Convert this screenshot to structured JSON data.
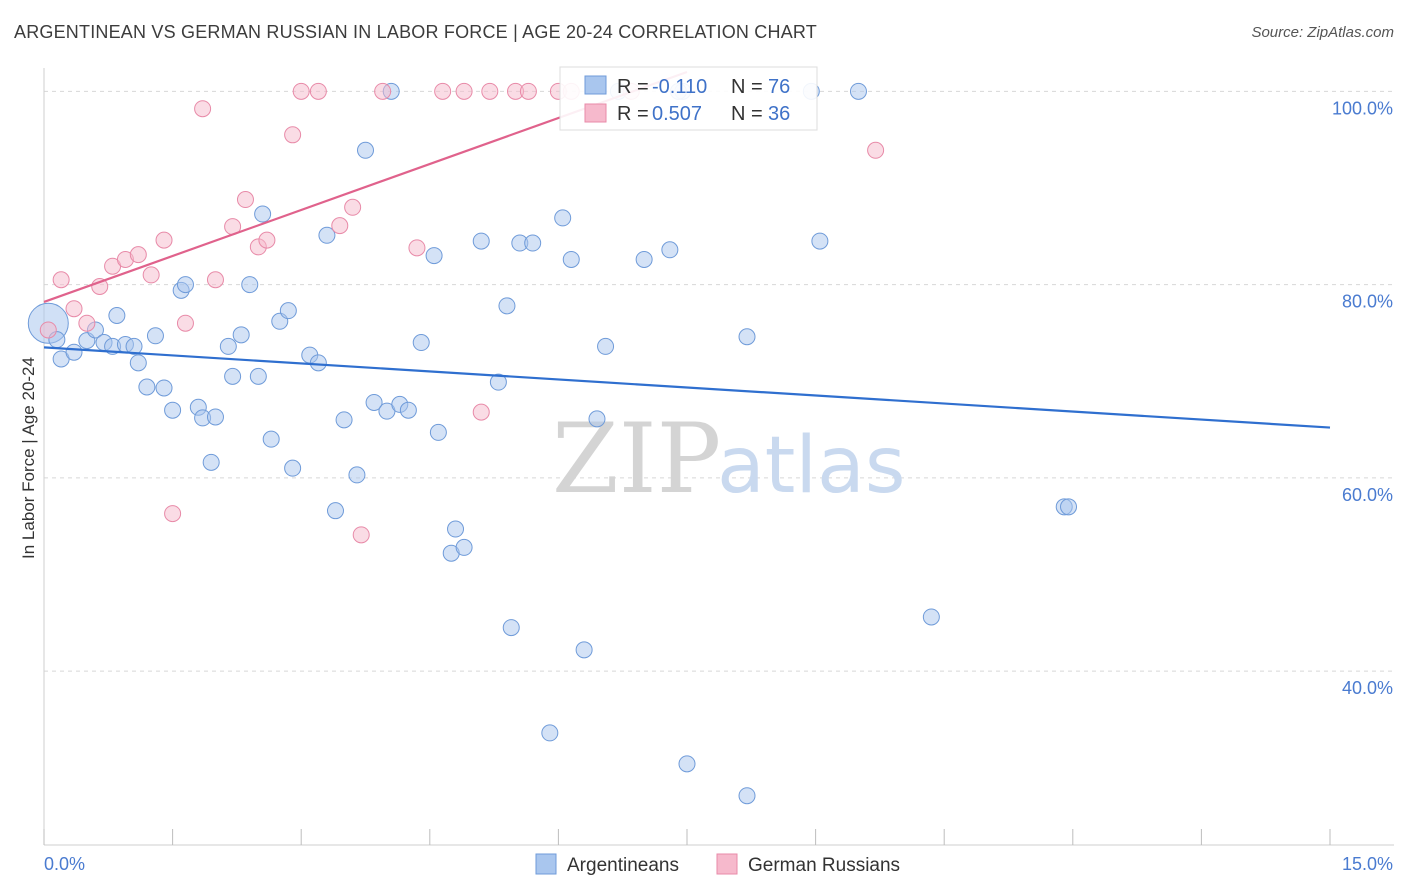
{
  "title": "ARGENTINEAN VS GERMAN RUSSIAN IN LABOR FORCE | AGE 20-24 CORRELATION CHART",
  "source": "Source: ZipAtlas.com",
  "watermark": {
    "zip": "ZIP",
    "atlas": "atlas"
  },
  "colors": {
    "argentineans_fill": "#a9c6ee",
    "argentineans_stroke": "#6f9bd9",
    "argentineans_line": "#2f6fcf",
    "german_russians_fill": "#f6b9cc",
    "german_russians_stroke": "#e88aa8",
    "german_russians_line": "#e0628c",
    "tick_label": "#4a7bd0",
    "grid": "#d8d8d8"
  },
  "legend": {
    "r_label": "R =",
    "n_label": "N =",
    "rows": [
      {
        "r": "-0.110",
        "n": "76"
      },
      {
        "r": "0.507",
        "n": "36"
      }
    ]
  },
  "bottom_legend": [
    "Argentineans",
    "German Russians"
  ],
  "chart_data": {
    "type": "scatter",
    "title": "ARGENTINEAN VS GERMAN RUSSIAN IN LABOR FORCE | AGE 20-24 CORRELATION CHART",
    "xlabel": "",
    "ylabel": "In Labor Force | Age 20-24",
    "xlim": [
      0,
      15
    ],
    "ylim": [
      22,
      102
    ],
    "x_tick_labels": [
      "0.0%",
      "15.0%"
    ],
    "y_ticks": [
      40,
      60,
      80,
      100
    ],
    "y_tick_labels": [
      "40.0%",
      "60.0%",
      "80.0%",
      "100.0%"
    ],
    "grid": true,
    "legend_position": "top-center",
    "series": [
      {
        "name": "Argentineans",
        "r": -0.11,
        "n": 76,
        "trend": {
          "x": [
            0,
            15
          ],
          "y": [
            73.5,
            65.2
          ]
        },
        "points": [
          {
            "x": 0.05,
            "y": 76.0,
            "big": true
          },
          {
            "x": 0.2,
            "y": 72.3
          },
          {
            "x": 0.15,
            "y": 74.3
          },
          {
            "x": 0.35,
            "y": 73.0
          },
          {
            "x": 0.5,
            "y": 74.2
          },
          {
            "x": 0.6,
            "y": 75.3
          },
          {
            "x": 0.7,
            "y": 74.0
          },
          {
            "x": 0.8,
            "y": 73.6
          },
          {
            "x": 0.95,
            "y": 73.8
          },
          {
            "x": 0.85,
            "y": 76.8
          },
          {
            "x": 1.05,
            "y": 73.6
          },
          {
            "x": 1.1,
            "y": 71.9
          },
          {
            "x": 1.2,
            "y": 69.4
          },
          {
            "x": 1.3,
            "y": 74.7
          },
          {
            "x": 1.4,
            "y": 69.3
          },
          {
            "x": 1.5,
            "y": 67.0
          },
          {
            "x": 1.6,
            "y": 79.4
          },
          {
            "x": 1.65,
            "y": 80.0
          },
          {
            "x": 1.8,
            "y": 67.3
          },
          {
            "x": 1.85,
            "y": 66.2
          },
          {
            "x": 1.95,
            "y": 61.6
          },
          {
            "x": 2.0,
            "y": 66.3
          },
          {
            "x": 2.15,
            "y": 73.6
          },
          {
            "x": 2.2,
            "y": 70.5
          },
          {
            "x": 2.3,
            "y": 74.8
          },
          {
            "x": 2.4,
            "y": 80.0
          },
          {
            "x": 2.5,
            "y": 70.5
          },
          {
            "x": 2.55,
            "y": 87.3
          },
          {
            "x": 2.65,
            "y": 64.0
          },
          {
            "x": 2.75,
            "y": 76.2
          },
          {
            "x": 2.85,
            "y": 77.3
          },
          {
            "x": 2.9,
            "y": 61.0
          },
          {
            "x": 3.1,
            "y": 72.7
          },
          {
            "x": 3.2,
            "y": 71.9
          },
          {
            "x": 3.3,
            "y": 85.1
          },
          {
            "x": 3.4,
            "y": 56.6
          },
          {
            "x": 3.5,
            "y": 66.0
          },
          {
            "x": 3.65,
            "y": 60.3
          },
          {
            "x": 3.75,
            "y": 93.9
          },
          {
            "x": 3.85,
            "y": 67.8
          },
          {
            "x": 4.0,
            "y": 66.9
          },
          {
            "x": 4.05,
            "y": 100.0
          },
          {
            "x": 4.15,
            "y": 67.6
          },
          {
            "x": 4.25,
            "y": 67.0
          },
          {
            "x": 4.4,
            "y": 74.0
          },
          {
            "x": 4.55,
            "y": 83.0
          },
          {
            "x": 4.6,
            "y": 64.7
          },
          {
            "x": 4.75,
            "y": 52.2
          },
          {
            "x": 4.8,
            "y": 54.7
          },
          {
            "x": 4.9,
            "y": 52.8
          },
          {
            "x": 5.1,
            "y": 84.5
          },
          {
            "x": 5.3,
            "y": 69.9
          },
          {
            "x": 5.4,
            "y": 77.8
          },
          {
            "x": 5.45,
            "y": 44.5
          },
          {
            "x": 5.55,
            "y": 84.3
          },
          {
            "x": 5.7,
            "y": 84.3
          },
          {
            "x": 5.9,
            "y": 33.6
          },
          {
            "x": 6.05,
            "y": 86.9
          },
          {
            "x": 6.15,
            "y": 82.6
          },
          {
            "x": 6.3,
            "y": 42.2
          },
          {
            "x": 6.45,
            "y": 66.1
          },
          {
            "x": 6.55,
            "y": 73.6
          },
          {
            "x": 7.0,
            "y": 82.6
          },
          {
            "x": 7.3,
            "y": 83.6
          },
          {
            "x": 7.45,
            "y": 100.0
          },
          {
            "x": 7.5,
            "y": 30.4
          },
          {
            "x": 8.2,
            "y": 74.6
          },
          {
            "x": 8.2,
            "y": 27.1
          },
          {
            "x": 8.95,
            "y": 100.0
          },
          {
            "x": 9.05,
            "y": 84.5
          },
          {
            "x": 9.5,
            "y": 100.0
          },
          {
            "x": 10.35,
            "y": 45.6
          },
          {
            "x": 11.9,
            "y": 57.0
          },
          {
            "x": 11.95,
            "y": 57.0
          },
          {
            "x": 7.4,
            "y": 100.0
          },
          {
            "x": 6.7,
            "y": 100.0
          }
        ]
      },
      {
        "name": "German Russians",
        "r": 0.507,
        "n": 36,
        "trend": {
          "x": [
            0,
            7.5
          ],
          "y": [
            78.2,
            102.0
          ]
        },
        "points": [
          {
            "x": 0.05,
            "y": 75.3
          },
          {
            "x": 0.2,
            "y": 80.5
          },
          {
            "x": 0.35,
            "y": 77.5
          },
          {
            "x": 0.5,
            "y": 76.0
          },
          {
            "x": 0.65,
            "y": 79.8
          },
          {
            "x": 0.8,
            "y": 81.9
          },
          {
            "x": 0.95,
            "y": 82.6
          },
          {
            "x": 1.1,
            "y": 83.1
          },
          {
            "x": 1.25,
            "y": 81.0
          },
          {
            "x": 1.4,
            "y": 84.6
          },
          {
            "x": 1.5,
            "y": 56.3
          },
          {
            "x": 1.65,
            "y": 76.0
          },
          {
            "x": 1.85,
            "y": 98.2
          },
          {
            "x": 2.0,
            "y": 80.5
          },
          {
            "x": 2.2,
            "y": 86.0
          },
          {
            "x": 2.35,
            "y": 88.8
          },
          {
            "x": 2.5,
            "y": 83.9
          },
          {
            "x": 2.6,
            "y": 84.6
          },
          {
            "x": 2.9,
            "y": 95.5
          },
          {
            "x": 3.0,
            "y": 100.0
          },
          {
            "x": 3.2,
            "y": 100.0
          },
          {
            "x": 3.45,
            "y": 86.1
          },
          {
            "x": 3.6,
            "y": 88.0
          },
          {
            "x": 3.7,
            "y": 54.1
          },
          {
            "x": 3.95,
            "y": 100.0
          },
          {
            "x": 4.35,
            "y": 83.8
          },
          {
            "x": 4.65,
            "y": 100.0
          },
          {
            "x": 4.9,
            "y": 100.0
          },
          {
            "x": 5.1,
            "y": 66.8
          },
          {
            "x": 5.2,
            "y": 100.0
          },
          {
            "x": 5.5,
            "y": 100.0
          },
          {
            "x": 5.65,
            "y": 100.0
          },
          {
            "x": 6.0,
            "y": 100.0
          },
          {
            "x": 6.15,
            "y": 100.0
          },
          {
            "x": 6.85,
            "y": 100.0
          },
          {
            "x": 9.7,
            "y": 93.9
          }
        ]
      }
    ]
  }
}
